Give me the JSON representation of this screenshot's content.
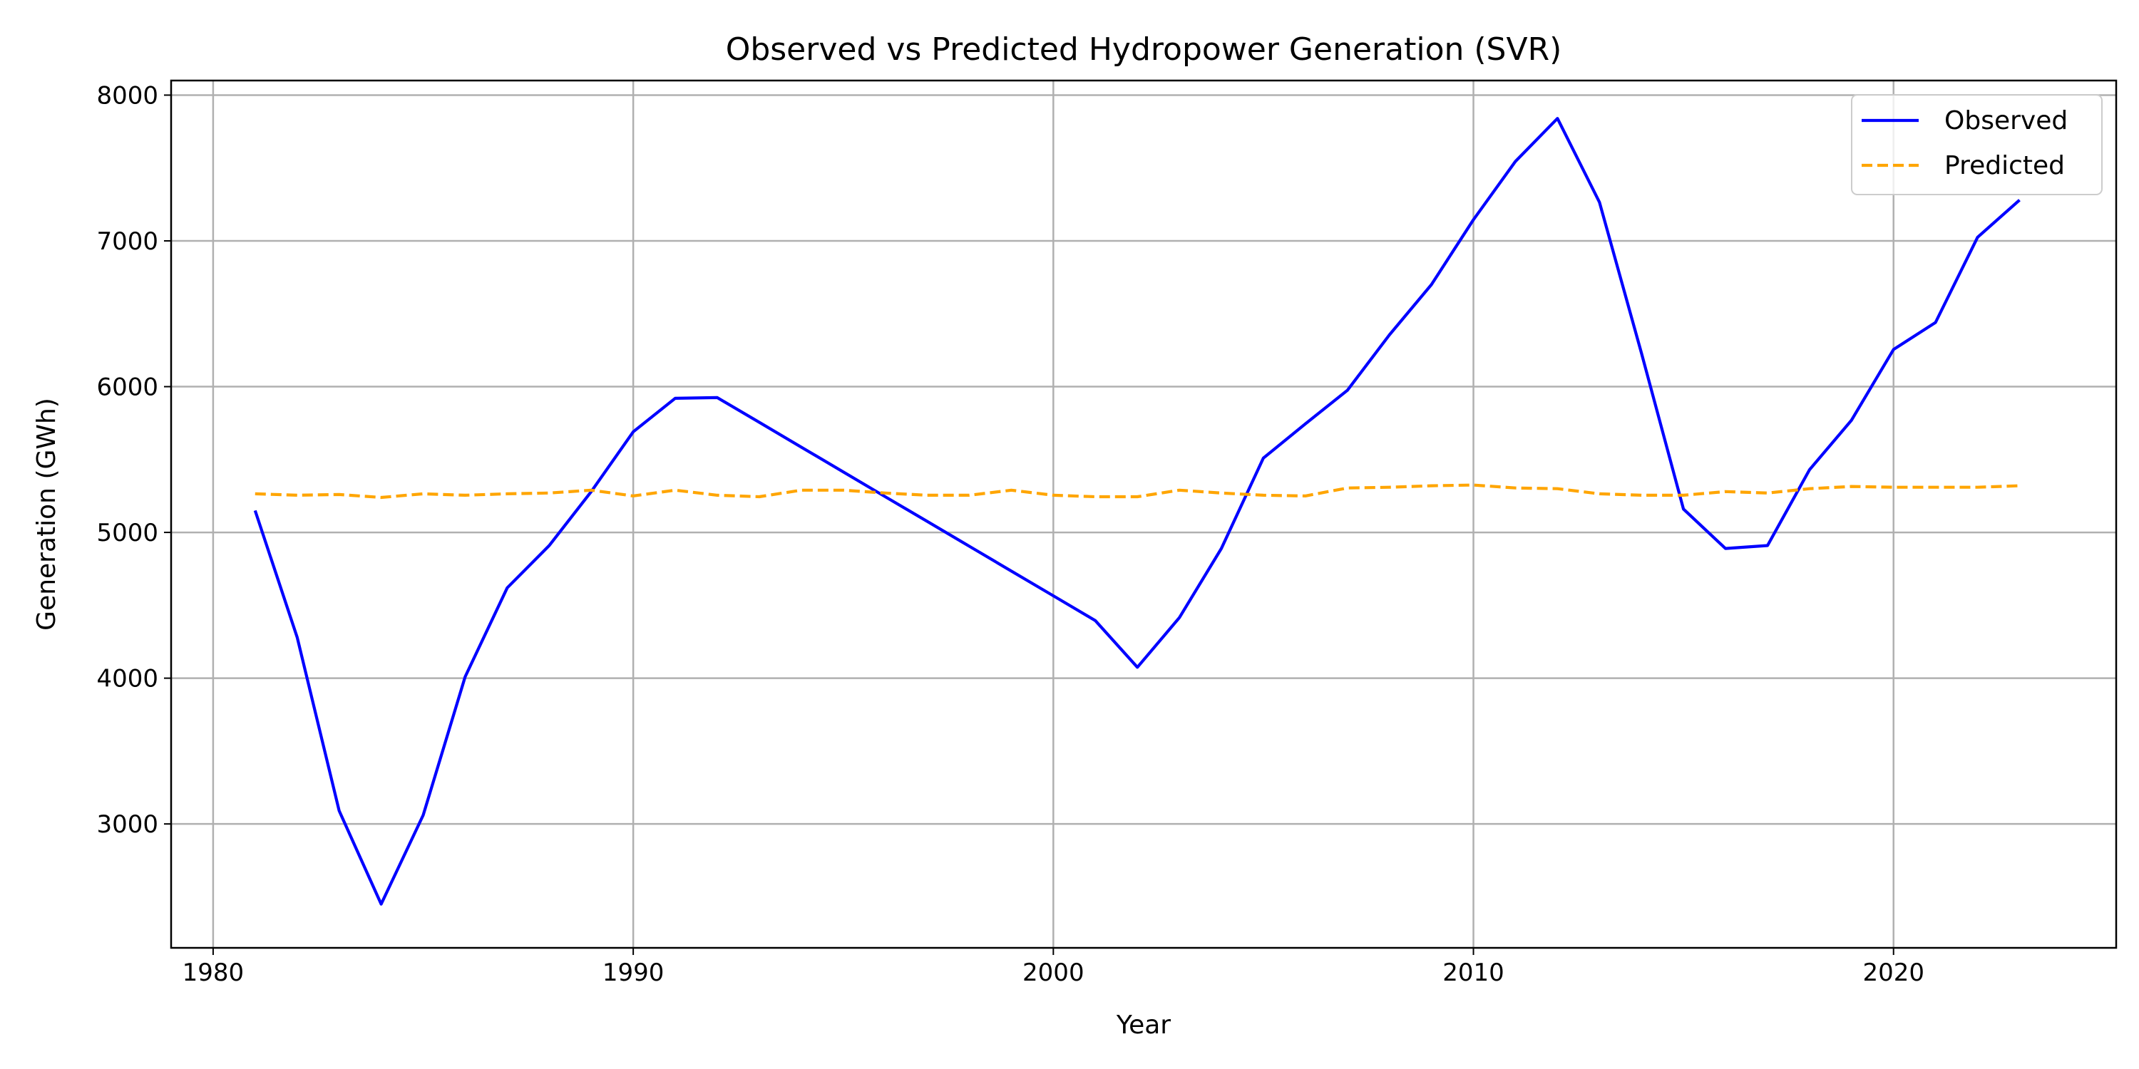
{
  "chart_data": {
    "type": "line",
    "title": "Observed vs Predicted Hydropower Generation (SVR)",
    "xlabel": "Year",
    "ylabel": "Generation (GWh)",
    "xlim": [
      1979,
      2025.3
    ],
    "ylim": [
      2150,
      8100
    ],
    "xticks": [
      1980,
      1990,
      2000,
      2010,
      2020
    ],
    "yticks": [
      3000,
      4000,
      5000,
      6000,
      7000,
      8000
    ],
    "grid": true,
    "legend_position": "top-right",
    "x": [
      1981,
      1982,
      1983,
      1984,
      1985,
      1986,
      1987,
      1988,
      1989,
      1990,
      1991,
      1992,
      1993,
      1994,
      1995,
      1996,
      1997,
      1998,
      1999,
      2000,
      2001,
      2002,
      2003,
      2004,
      2005,
      2006,
      2007,
      2008,
      2009,
      2010,
      2011,
      2012,
      2013,
      2014,
      2015,
      2016,
      2017,
      2018,
      2019,
      2020,
      2021,
      2022,
      2023
    ],
    "series": [
      {
        "name": "Observed",
        "color": "#0000ff",
        "style": "solid",
        "values": [
          5150,
          4280,
          3090,
          2450,
          3060,
          4010,
          4620,
          4910,
          5280,
          5690,
          5920,
          5925,
          5755,
          5585,
          5415,
          5245,
          5075,
          4905,
          4735,
          4565,
          4395,
          4075,
          4415,
          4890,
          5510,
          5745,
          5975,
          6355,
          6700,
          7145,
          7545,
          7840,
          7265,
          6230,
          5160,
          4890,
          4910,
          5430,
          5770,
          6255,
          6440,
          7025,
          7280
        ]
      },
      {
        "name": "Predicted",
        "color": "#ffa500",
        "style": "dashed",
        "values": [
          5265,
          5255,
          5260,
          5240,
          5265,
          5255,
          5265,
          5270,
          5290,
          5250,
          5290,
          5255,
          5245,
          5290,
          5290,
          5270,
          5255,
          5255,
          5290,
          5255,
          5245,
          5245,
          5290,
          5270,
          5255,
          5250,
          5305,
          5310,
          5320,
          5325,
          5305,
          5300,
          5265,
          5255,
          5255,
          5280,
          5270,
          5300,
          5315,
          5310,
          5310,
          5310,
          5320
        ]
      }
    ]
  }
}
